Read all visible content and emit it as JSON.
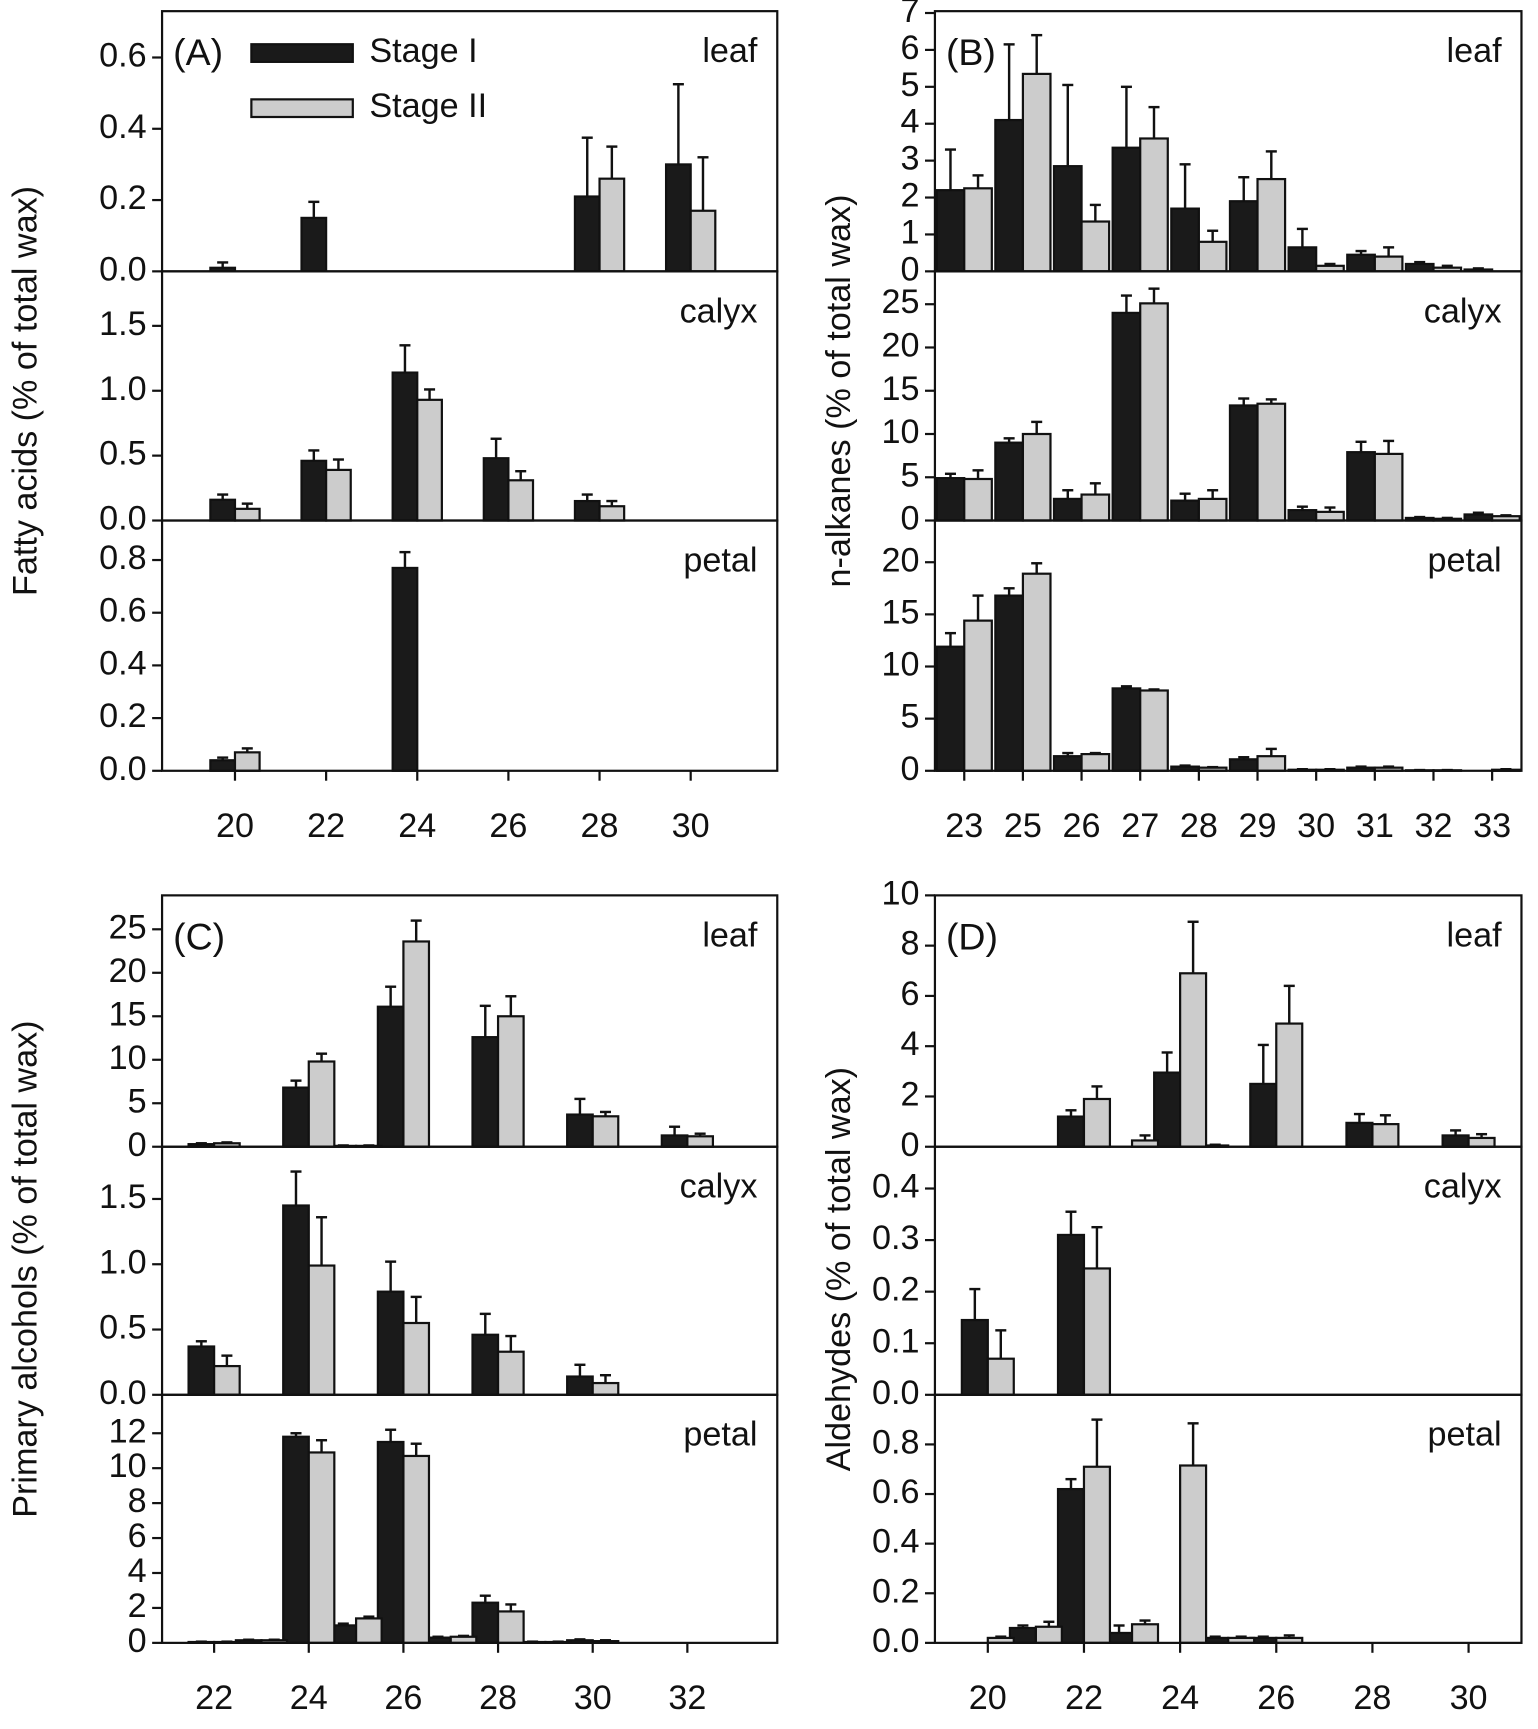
{
  "chart_data": [
    {
      "type": "bar",
      "panel": "(A)",
      "label": "leaf",
      "x": [
        20,
        22,
        28,
        30
      ],
      "xlim": [
        18.4,
        31.9
      ],
      "series": [
        {
          "name": "Stage I",
          "color": "#1a1a1a",
          "values": [
            0.01,
            0.15,
            0.21,
            0.3
          ],
          "errors": [
            0.015,
            0.045,
            0.165,
            0.225
          ]
        },
        {
          "name": "Stage II",
          "color": "#cccccc",
          "values": [
            null,
            null,
            0.26,
            0.17
          ],
          "errors": [
            null,
            null,
            0.09,
            0.15
          ]
        }
      ],
      "ylim": [
        0,
        0.73
      ],
      "yticks": [
        {
          "value": 0,
          "label": "0.0"
        },
        0.2,
        0.4,
        0.6
      ]
    },
    {
      "type": "bar",
      "label": "calyx",
      "ylabel": "Fatty acids (% of total wax)",
      "x": [
        20,
        22,
        24,
        26,
        28
      ],
      "xlim": [
        18.4,
        31.9
      ],
      "series": [
        {
          "color": "#1a1a1a",
          "values": [
            0.16,
            0.46,
            1.14,
            0.48,
            0.15
          ],
          "errors": [
            0.04,
            0.08,
            0.21,
            0.15,
            0.05
          ]
        },
        {
          "color": "#cccccc",
          "values": [
            0.09,
            0.39,
            0.93,
            0.31,
            0.11
          ],
          "errors": [
            0.04,
            0.08,
            0.08,
            0.07,
            0.04
          ]
        }
      ],
      "ylim": [
        0,
        1.92
      ],
      "yticks": [
        {
          "value": 0,
          "label": "0.0"
        },
        0.5,
        {
          "value": 1,
          "label": "1.0"
        },
        1.5
      ]
    },
    {
      "type": "bar",
      "label": "petal",
      "x": [
        20,
        24
      ],
      "xlim": [
        18.4,
        31.9
      ],
      "xticks": [
        20,
        22,
        24,
        26,
        28,
        30
      ],
      "series": [
        {
          "color": "#1a1a1a",
          "values": [
            0.04,
            0.77
          ],
          "errors": [
            0.01,
            0.06
          ]
        },
        {
          "color": "#cccccc",
          "values": [
            0.07,
            null
          ],
          "errors": [
            0.015,
            null
          ]
        }
      ],
      "ylim": [
        0,
        0.95
      ],
      "yticks": [
        {
          "value": 0,
          "label": "0.0"
        },
        0.2,
        0.4,
        0.6,
        0.8
      ]
    },
    {
      "type": "catbar",
      "panel": "(B)",
      "label": "leaf",
      "series": [
        {
          "color": "#1a1a1a",
          "values": [
            2.2,
            4.1,
            2.85,
            3.35,
            1.7,
            1.9,
            0.65,
            0.45,
            0.2,
            0.05
          ],
          "errors": [
            1.1,
            2.05,
            2.2,
            1.65,
            1.2,
            0.65,
            0.5,
            0.1,
            0.05,
            0.03
          ]
        },
        {
          "color": "#cccccc",
          "values": [
            2.25,
            5.35,
            1.35,
            3.6,
            0.8,
            2.5,
            0.15,
            0.4,
            0.1,
            null
          ],
          "errors": [
            0.35,
            1.05,
            0.45,
            0.85,
            0.3,
            0.75,
            0.05,
            0.25,
            0.05,
            null
          ]
        }
      ],
      "ylim": [
        0,
        7.05
      ],
      "yticks": [
        0,
        1,
        2,
        3,
        4,
        5,
        6,
        7
      ]
    },
    {
      "type": "catbar",
      "label": "calyx",
      "ylabel": "n-alkanes (% of total wax)",
      "series": [
        {
          "color": "#1a1a1a",
          "values": [
            4.9,
            9.0,
            2.5,
            24.0,
            2.3,
            13.3,
            1.2,
            7.9,
            0.3,
            0.7
          ],
          "errors": [
            0.5,
            0.5,
            1.0,
            2.0,
            0.8,
            0.8,
            0.4,
            1.2,
            0.1,
            0.2
          ]
        },
        {
          "color": "#cccccc",
          "values": [
            4.8,
            10.0,
            3.0,
            25.1,
            2.5,
            13.5,
            1.0,
            7.7,
            0.2,
            0.5
          ],
          "errors": [
            1.0,
            1.4,
            1.3,
            1.7,
            1.0,
            0.5,
            0.5,
            1.5,
            0.1,
            0.1
          ]
        }
      ],
      "ylim": [
        0,
        28.8
      ],
      "yticks": [
        0,
        5,
        10,
        15,
        20,
        25
      ]
    },
    {
      "type": "catbar",
      "label": "petal",
      "categories": [
        "23",
        "25",
        "26",
        "27",
        "28",
        "29",
        "30",
        "31",
        "32",
        "33"
      ],
      "series": [
        {
          "color": "#1a1a1a",
          "values": [
            11.9,
            16.8,
            1.4,
            7.9,
            0.4,
            1.1,
            0.1,
            0.3,
            0.05,
            null
          ],
          "errors": [
            1.3,
            0.7,
            0.3,
            0.2,
            0.1,
            0.2,
            0.05,
            0.1,
            0.02,
            null
          ]
        },
        {
          "color": "#cccccc",
          "values": [
            14.4,
            18.9,
            1.6,
            7.7,
            0.3,
            1.4,
            0.1,
            0.3,
            0.05,
            0.1
          ],
          "errors": [
            2.4,
            1.0,
            0.1,
            0.1,
            0.05,
            0.7,
            0.05,
            0.1,
            0.02,
            0.05
          ]
        }
      ],
      "ylim": [
        0,
        24.0
      ],
      "yticks": [
        0,
        5,
        10,
        15,
        20
      ]
    },
    {
      "type": "bar",
      "panel": "(C)",
      "label": "leaf",
      "x": [
        22,
        24,
        25,
        26,
        28,
        30,
        32
      ],
      "xlim": [
        20.9,
        33.9
      ],
      "series": [
        {
          "color": "#1a1a1a",
          "values": [
            0.3,
            6.8,
            0.1,
            16.1,
            12.6,
            3.7,
            1.3
          ],
          "errors": [
            0.1,
            0.8,
            0.05,
            2.3,
            3.6,
            1.8,
            1.0
          ]
        },
        {
          "color": "#cccccc",
          "values": [
            0.4,
            9.8,
            0.1,
            23.6,
            15.0,
            3.5,
            1.2
          ],
          "errors": [
            0.1,
            0.9,
            0.05,
            2.4,
            2.3,
            0.5,
            0.3
          ]
        }
      ],
      "ylim": [
        0,
        28.9
      ],
      "yticks": [
        0,
        5,
        10,
        15,
        20,
        25
      ]
    },
    {
      "type": "bar",
      "label": "calyx",
      "ylabel": "Primary alcohols (% of total wax)",
      "x": [
        22,
        24,
        26,
        28,
        30
      ],
      "xlim": [
        20.9,
        33.9
      ],
      "series": [
        {
          "color": "#1a1a1a",
          "values": [
            0.37,
            1.45,
            0.79,
            0.46,
            0.14
          ],
          "errors": [
            0.04,
            0.26,
            0.23,
            0.16,
            0.09
          ]
        },
        {
          "color": "#cccccc",
          "values": [
            0.22,
            0.99,
            0.55,
            0.33,
            0.09
          ],
          "errors": [
            0.08,
            0.37,
            0.2,
            0.12,
            0.06
          ]
        }
      ],
      "ylim": [
        0,
        1.9
      ],
      "yticks": [
        {
          "value": 0,
          "label": "0.0"
        },
        0.5,
        {
          "value": 1,
          "label": "1.0"
        },
        1.5
      ]
    },
    {
      "type": "bar",
      "label": "petal",
      "x": [
        22,
        23,
        24,
        25,
        26,
        27,
        28,
        29,
        30
      ],
      "xlim": [
        20.9,
        33.9
      ],
      "xticks": [
        22,
        24,
        26,
        28,
        30,
        32
      ],
      "series": [
        {
          "color": "#1a1a1a",
          "values": [
            0.05,
            0.15,
            11.8,
            1.0,
            11.5,
            0.3,
            2.3,
            0.05,
            0.15
          ],
          "errors": [
            0.02,
            0.03,
            0.2,
            0.1,
            0.7,
            0.05,
            0.4,
            0.02,
            0.05
          ]
        },
        {
          "color": "#cccccc",
          "values": [
            0.05,
            0.15,
            10.9,
            1.4,
            10.7,
            0.35,
            1.8,
            0.05,
            0.1
          ],
          "errors": [
            0.02,
            0.03,
            0.7,
            0.1,
            0.7,
            0.05,
            0.4,
            0.02,
            0.05
          ]
        }
      ],
      "ylim": [
        0,
        14.2
      ],
      "yticks": [
        0,
        2,
        4,
        6,
        8,
        10,
        12
      ]
    },
    {
      "type": "bar",
      "panel": "(D)",
      "label": "leaf",
      "x": [
        22,
        23,
        24,
        25,
        26,
        28,
        30
      ],
      "xlim": [
        18.9,
        31.1
      ],
      "series": [
        {
          "color": "#1a1a1a",
          "values": [
            1.2,
            null,
            2.95,
            0.05,
            2.5,
            0.95,
            0.45
          ],
          "errors": [
            0.25,
            null,
            0.8,
            0.03,
            1.55,
            0.35,
            0.2
          ]
        },
        {
          "color": "#cccccc",
          "values": [
            1.9,
            0.25,
            6.9,
            null,
            4.9,
            0.9,
            0.35
          ],
          "errors": [
            0.5,
            0.2,
            2.05,
            null,
            1.5,
            0.35,
            0.15
          ]
        }
      ],
      "ylim": [
        0,
        10
      ],
      "yticks": [
        0,
        2,
        4,
        6,
        8,
        10
      ]
    },
    {
      "type": "bar",
      "label": "calyx",
      "ylabel": "Aldehydes (% of total wax)",
      "x": [
        20,
        22
      ],
      "xlim": [
        18.9,
        31.1
      ],
      "series": [
        {
          "color": "#1a1a1a",
          "values": [
            0.145,
            0.31
          ],
          "errors": [
            0.06,
            0.045
          ]
        },
        {
          "color": "#cccccc",
          "values": [
            0.07,
            0.245
          ],
          "errors": [
            0.055,
            0.08
          ]
        }
      ],
      "ylim": [
        0,
        0.481
      ],
      "yticks": [
        {
          "value": 0,
          "label": "0.0"
        },
        0.1,
        0.2,
        0.3,
        0.4
      ]
    },
    {
      "type": "bar",
      "label": "petal",
      "x": [
        20,
        21,
        22,
        23,
        24,
        25,
        26
      ],
      "xlim": [
        18.9,
        31.1
      ],
      "xticks": [
        20,
        22,
        24,
        26,
        28,
        30
      ],
      "series": [
        {
          "color": "#1a1a1a",
          "values": [
            null,
            0.06,
            0.62,
            0.04,
            null,
            0.02,
            0.02
          ],
          "errors": [
            null,
            0.01,
            0.04,
            0.03,
            null,
            0.005,
            0.005
          ]
        },
        {
          "color": "#cccccc",
          "values": [
            0.02,
            0.065,
            0.71,
            0.075,
            0.715,
            0.02,
            0.02
          ],
          "errors": [
            0.005,
            0.02,
            0.19,
            0.015,
            0.17,
            0.005,
            0.01
          ]
        }
      ],
      "ylim": [
        0,
        1.0
      ],
      "yticks": [
        {
          "value": 0,
          "label": "0.0"
        },
        0.2,
        0.4,
        0.6,
        0.8
      ]
    }
  ]
}
